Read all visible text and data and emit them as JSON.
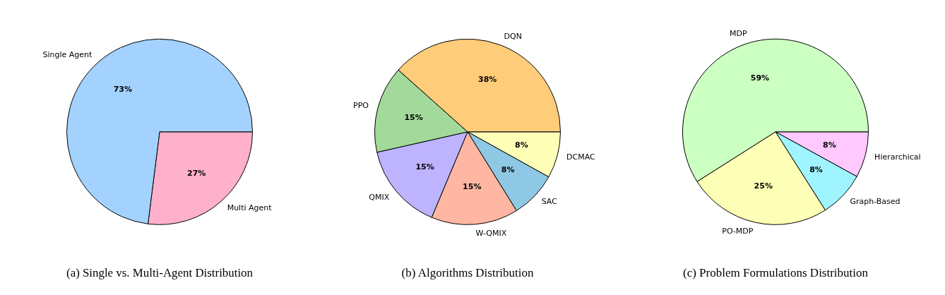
{
  "chart_data": [
    {
      "type": "pie",
      "title": "(a) Single vs. Multi-Agent Distribution",
      "categories": [
        "Single Agent",
        "Multi Agent"
      ],
      "values": [
        73,
        27
      ],
      "colors": [
        "#a3d2ff",
        "#ffb0cb"
      ],
      "value_labels": [
        "73%",
        "27%"
      ]
    },
    {
      "type": "pie",
      "title": "(b) Algorithms Distribution",
      "categories": [
        "DQN",
        "PPO",
        "QMIX",
        "W-QMIX",
        "SAC",
        "DCMAC"
      ],
      "values": [
        38,
        15,
        15,
        15,
        8,
        8
      ],
      "colors": [
        "#ffcc7a",
        "#a3d99a",
        "#bdb3ff",
        "#ffb6a3",
        "#8fc8e4",
        "#ffffb8"
      ],
      "value_labels": [
        "38%",
        "15%",
        "15%",
        "15%",
        "8%",
        "8%"
      ]
    },
    {
      "type": "pie",
      "title": "(c) Problem Formulations Distribution",
      "categories": [
        "MDP",
        "PO-MDP",
        "Graph-Based",
        "Hierarchical"
      ],
      "values": [
        59,
        25,
        8,
        8
      ],
      "colors": [
        "#ccffc2",
        "#fdffb6",
        "#9ff4ff",
        "#ffc8ff"
      ],
      "value_labels": [
        "59%",
        "25%",
        "8%",
        "8%"
      ]
    }
  ]
}
